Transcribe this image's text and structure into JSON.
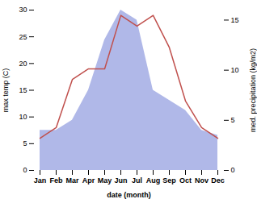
{
  "chart_data": {
    "type": "line",
    "categories": [
      "Jan",
      "Feb",
      "Mar",
      "Apr",
      "May",
      "Jun",
      "Jul",
      "Aug",
      "Sep",
      "Oct",
      "Nov",
      "Dec"
    ],
    "xlabel": "date (month)",
    "ylabel": "max temp (C)",
    "y2label": "med. precipitation (kg/m2)",
    "ylim": [
      0,
      30
    ],
    "yticks": [
      0,
      5,
      10,
      15,
      20,
      25,
      30
    ],
    "y2lim": [
      0,
      16
    ],
    "y2ticks": [
      0,
      5,
      10,
      15
    ],
    "series": [
      {
        "type": "area",
        "axis": "y2",
        "color": "#b0b8e8",
        "values": [
          4,
          4,
          5,
          8,
          13,
          16,
          15,
          8,
          7,
          6,
          4,
          3.5
        ]
      },
      {
        "type": "line",
        "color": "#c0504d",
        "values": [
          6,
          8,
          17,
          19,
          19,
          29,
          27,
          29,
          23,
          13,
          8,
          6
        ]
      }
    ]
  }
}
